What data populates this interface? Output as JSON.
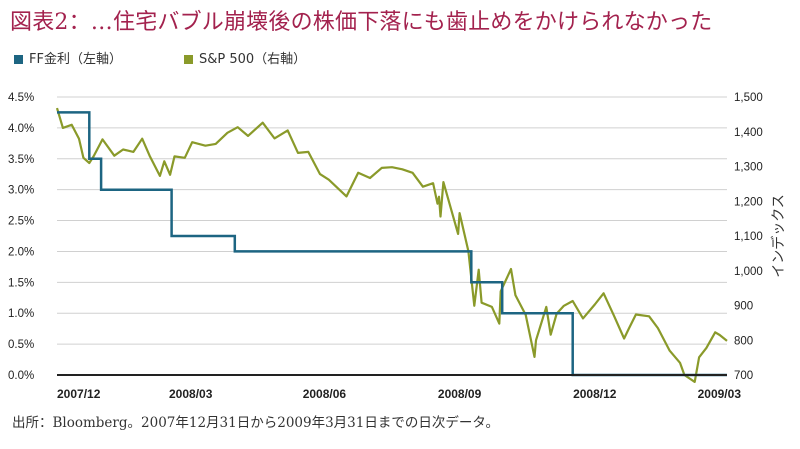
{
  "title": "図表2：…住宅バブル崩壊後の株価下落にも歯止めをかけられなかった",
  "source": "出所：Bloomberg。2007年12月31日から2009年3月31日までの日次データ。",
  "colors": {
    "title": "#a3224e",
    "ff": "#1d6582",
    "sp": "#8a9a2a",
    "grid": "#d0d0d0",
    "axis": "#222222"
  },
  "chart_data": {
    "type": "line",
    "x_ticks": [
      "2007/12",
      "2008/03",
      "2008/06",
      "2008/09",
      "2008/12",
      "2009/03"
    ],
    "left_axis": {
      "ylim": [
        0,
        4.5
      ],
      "ticks": [
        "0.0%",
        "0.5%",
        "1.0%",
        "1.5%",
        "2.0%",
        "2.5%",
        "3.0%",
        "3.5%",
        "4.0%",
        "4.5%"
      ]
    },
    "right_axis": {
      "label": "インデックス",
      "ylim": [
        700,
        1500
      ],
      "ticks": [
        "700",
        "800",
        "900",
        "1,000",
        "1,100",
        "1,200",
        "1,300",
        "1,400",
        "1,500"
      ]
    },
    "grid": true,
    "legend": "top-left",
    "series": [
      {
        "name": "FF金利（左軸）",
        "axis": "left",
        "step": true,
        "points": [
          [
            "2007-12-31",
            4.25
          ],
          [
            "2008-01-22",
            4.25
          ],
          [
            "2008-01-22",
            3.5
          ],
          [
            "2008-01-30",
            3.5
          ],
          [
            "2008-01-30",
            3.0
          ],
          [
            "2008-03-18",
            3.0
          ],
          [
            "2008-03-18",
            2.25
          ],
          [
            "2008-04-30",
            2.25
          ],
          [
            "2008-04-30",
            2.0
          ],
          [
            "2008-10-08",
            2.0
          ],
          [
            "2008-10-08",
            1.5
          ],
          [
            "2008-10-29",
            1.5
          ],
          [
            "2008-10-29",
            1.0
          ],
          [
            "2008-12-16",
            1.0
          ],
          [
            "2008-12-16",
            0.0
          ],
          [
            "2009-03-31",
            0.0
          ]
        ]
      },
      {
        "name": "S&P 500（右軸）",
        "axis": "right",
        "points": [
          [
            "2007-12-31",
            1468
          ],
          [
            "2008-01-04",
            1411
          ],
          [
            "2008-01-10",
            1420
          ],
          [
            "2008-01-15",
            1380
          ],
          [
            "2008-01-18",
            1325
          ],
          [
            "2008-01-22",
            1310
          ],
          [
            "2008-01-25",
            1330
          ],
          [
            "2008-01-31",
            1378
          ],
          [
            "2008-02-08",
            1331
          ],
          [
            "2008-02-14",
            1349
          ],
          [
            "2008-02-21",
            1342
          ],
          [
            "2008-02-27",
            1380
          ],
          [
            "2008-03-03",
            1331
          ],
          [
            "2008-03-10",
            1273
          ],
          [
            "2008-03-13",
            1315
          ],
          [
            "2008-03-17",
            1276
          ],
          [
            "2008-03-20",
            1329
          ],
          [
            "2008-03-27",
            1325
          ],
          [
            "2008-04-01",
            1370
          ],
          [
            "2008-04-10",
            1360
          ],
          [
            "2008-04-17",
            1365
          ],
          [
            "2008-04-25",
            1397
          ],
          [
            "2008-05-02",
            1413
          ],
          [
            "2008-05-09",
            1388
          ],
          [
            "2008-05-19",
            1426
          ],
          [
            "2008-05-27",
            1381
          ],
          [
            "2008-06-05",
            1404
          ],
          [
            "2008-06-12",
            1339
          ],
          [
            "2008-06-19",
            1342
          ],
          [
            "2008-06-27",
            1278
          ],
          [
            "2008-07-03",
            1262
          ],
          [
            "2008-07-15",
            1214
          ],
          [
            "2008-07-23",
            1282
          ],
          [
            "2008-07-31",
            1267
          ],
          [
            "2008-08-08",
            1296
          ],
          [
            "2008-08-15",
            1298
          ],
          [
            "2008-08-22",
            1292
          ],
          [
            "2008-08-29",
            1282
          ],
          [
            "2008-09-05",
            1242
          ],
          [
            "2008-09-12",
            1252
          ],
          [
            "2008-09-15",
            1193
          ],
          [
            "2008-09-16",
            1213
          ],
          [
            "2008-09-17",
            1156
          ],
          [
            "2008-09-19",
            1255
          ],
          [
            "2008-09-29",
            1106
          ],
          [
            "2008-09-30",
            1166
          ],
          [
            "2008-10-06",
            1056
          ],
          [
            "2008-10-10",
            899
          ],
          [
            "2008-10-13",
            1003
          ],
          [
            "2008-10-15",
            908
          ],
          [
            "2008-10-22",
            896
          ],
          [
            "2008-10-27",
            848
          ],
          [
            "2008-10-28",
            941
          ],
          [
            "2008-11-04",
            1005
          ],
          [
            "2008-11-07",
            930
          ],
          [
            "2008-11-14",
            873
          ],
          [
            "2008-11-20",
            752
          ],
          [
            "2008-11-21",
            800
          ],
          [
            "2008-11-28",
            896
          ],
          [
            "2008-12-01",
            816
          ],
          [
            "2008-12-05",
            876
          ],
          [
            "2008-12-10",
            899
          ],
          [
            "2008-12-16",
            913
          ],
          [
            "2008-12-23",
            863
          ],
          [
            "2008-12-31",
            903
          ],
          [
            "2009-01-06",
            935
          ],
          [
            "2009-01-13",
            871
          ],
          [
            "2009-01-20",
            805
          ],
          [
            "2009-01-23",
            832
          ],
          [
            "2009-01-28",
            874
          ],
          [
            "2009-02-06",
            869
          ],
          [
            "2009-02-12",
            835
          ],
          [
            "2009-02-20",
            770
          ],
          [
            "2009-02-27",
            735
          ],
          [
            "2009-03-02",
            700
          ],
          [
            "2009-03-09",
            677
          ],
          [
            "2009-03-12",
            751
          ],
          [
            "2009-03-17",
            778
          ],
          [
            "2009-03-23",
            823
          ],
          [
            "2009-03-26",
            815
          ],
          [
            "2009-03-31",
            798
          ]
        ]
      }
    ]
  }
}
